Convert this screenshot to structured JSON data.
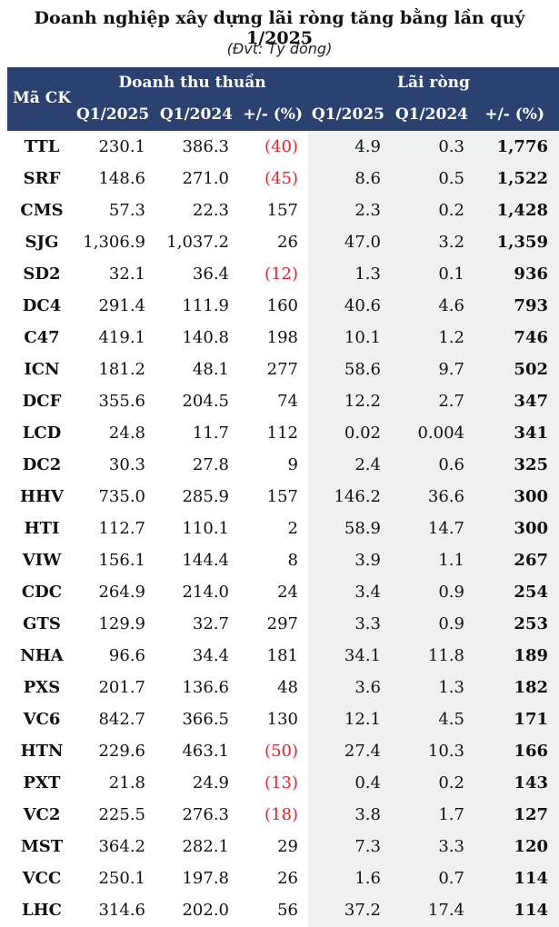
{
  "title": "Doanh nghiệp xây dựng lãi ròng tăng bằng lần quý 1/2025",
  "subtitle": "(Đvt: Tỷ đồng)",
  "header": {
    "ticker": "Mã CK",
    "revenue_group": "Doanh thu thuần",
    "profit_group": "Lãi ròng",
    "rev_q1_2025": "Q1/2025",
    "rev_q1_2024": "Q1/2024",
    "rev_change": "+/- (%)",
    "np_q1_2025": "Q1/2025",
    "np_q1_2024": "Q1/2024",
    "np_change": "+/- (%)"
  },
  "rows": [
    {
      "ticker": "TTL",
      "rev2025": "230.1",
      "rev2024": "386.3",
      "revchg": "(40)",
      "np2025": "4.9",
      "np2024": "0.3",
      "npchg": "1,776"
    },
    {
      "ticker": "SRF",
      "rev2025": "148.6",
      "rev2024": "271.0",
      "revchg": "(45)",
      "np2025": "8.6",
      "np2024": "0.5",
      "npchg": "1,522"
    },
    {
      "ticker": "CMS",
      "rev2025": "57.3",
      "rev2024": "22.3",
      "revchg": "157",
      "np2025": "2.3",
      "np2024": "0.2",
      "npchg": "1,428"
    },
    {
      "ticker": "SJG",
      "rev2025": "1,306.9",
      "rev2024": "1,037.2",
      "revchg": "26",
      "np2025": "47.0",
      "np2024": "3.2",
      "npchg": "1,359"
    },
    {
      "ticker": "SD2",
      "rev2025": "32.1",
      "rev2024": "36.4",
      "revchg": "(12)",
      "np2025": "1.3",
      "np2024": "0.1",
      "npchg": "936"
    },
    {
      "ticker": "DC4",
      "rev2025": "291.4",
      "rev2024": "111.9",
      "revchg": "160",
      "np2025": "40.6",
      "np2024": "4.6",
      "npchg": "793"
    },
    {
      "ticker": "C47",
      "rev2025": "419.1",
      "rev2024": "140.8",
      "revchg": "198",
      "np2025": "10.1",
      "np2024": "1.2",
      "npchg": "746"
    },
    {
      "ticker": "ICN",
      "rev2025": "181.2",
      "rev2024": "48.1",
      "revchg": "277",
      "np2025": "58.6",
      "np2024": "9.7",
      "npchg": "502"
    },
    {
      "ticker": "DCF",
      "rev2025": "355.6",
      "rev2024": "204.5",
      "revchg": "74",
      "np2025": "12.2",
      "np2024": "2.7",
      "npchg": "347"
    },
    {
      "ticker": "LCD",
      "rev2025": "24.8",
      "rev2024": "11.7",
      "revchg": "112",
      "np2025": "0.02",
      "np2024": "0.004",
      "npchg": "341"
    },
    {
      "ticker": "DC2",
      "rev2025": "30.3",
      "rev2024": "27.8",
      "revchg": "9",
      "np2025": "2.4",
      "np2024": "0.6",
      "npchg": "325"
    },
    {
      "ticker": "HHV",
      "rev2025": "735.0",
      "rev2024": "285.9",
      "revchg": "157",
      "np2025": "146.2",
      "np2024": "36.6",
      "npchg": "300"
    },
    {
      "ticker": "HTI",
      "rev2025": "112.7",
      "rev2024": "110.1",
      "revchg": "2",
      "np2025": "58.9",
      "np2024": "14.7",
      "npchg": "300"
    },
    {
      "ticker": "VIW",
      "rev2025": "156.1",
      "rev2024": "144.4",
      "revchg": "8",
      "np2025": "3.9",
      "np2024": "1.1",
      "npchg": "267"
    },
    {
      "ticker": "CDC",
      "rev2025": "264.9",
      "rev2024": "214.0",
      "revchg": "24",
      "np2025": "3.4",
      "np2024": "0.9",
      "npchg": "254"
    },
    {
      "ticker": "GTS",
      "rev2025": "129.9",
      "rev2024": "32.7",
      "revchg": "297",
      "np2025": "3.3",
      "np2024": "0.9",
      "npchg": "253"
    },
    {
      "ticker": "NHA",
      "rev2025": "96.6",
      "rev2024": "34.4",
      "revchg": "181",
      "np2025": "34.1",
      "np2024": "11.8",
      "npchg": "189"
    },
    {
      "ticker": "PXS",
      "rev2025": "201.7",
      "rev2024": "136.6",
      "revchg": "48",
      "np2025": "3.6",
      "np2024": "1.3",
      "npchg": "182"
    },
    {
      "ticker": "VC6",
      "rev2025": "842.7",
      "rev2024": "366.5",
      "revchg": "130",
      "np2025": "12.1",
      "np2024": "4.5",
      "npchg": "171"
    },
    {
      "ticker": "HTN",
      "rev2025": "229.6",
      "rev2024": "463.1",
      "revchg": "(50)",
      "np2025": "27.4",
      "np2024": "10.3",
      "npchg": "166"
    },
    {
      "ticker": "PXT",
      "rev2025": "21.8",
      "rev2024": "24.9",
      "revchg": "(13)",
      "np2025": "0.4",
      "np2024": "0.2",
      "npchg": "143"
    },
    {
      "ticker": "VC2",
      "rev2025": "225.5",
      "rev2024": "276.3",
      "revchg": "(18)",
      "np2025": "3.8",
      "np2024": "1.7",
      "npchg": "127"
    },
    {
      "ticker": "MST",
      "rev2025": "364.2",
      "rev2024": "282.1",
      "revchg": "29",
      "np2025": "7.3",
      "np2024": "3.3",
      "npchg": "120"
    },
    {
      "ticker": "VCC",
      "rev2025": "250.1",
      "rev2024": "197.8",
      "revchg": "26",
      "np2025": "1.6",
      "np2024": "0.7",
      "npchg": "114"
    },
    {
      "ticker": "LHC",
      "rev2025": "314.6",
      "rev2024": "202.0",
      "revchg": "56",
      "np2025": "37.2",
      "np2024": "17.4",
      "npchg": "114"
    }
  ],
  "colors": {
    "header_bg": "#2b4170",
    "negative": "#e8222c",
    "profit_band": "#eef0f4"
  }
}
